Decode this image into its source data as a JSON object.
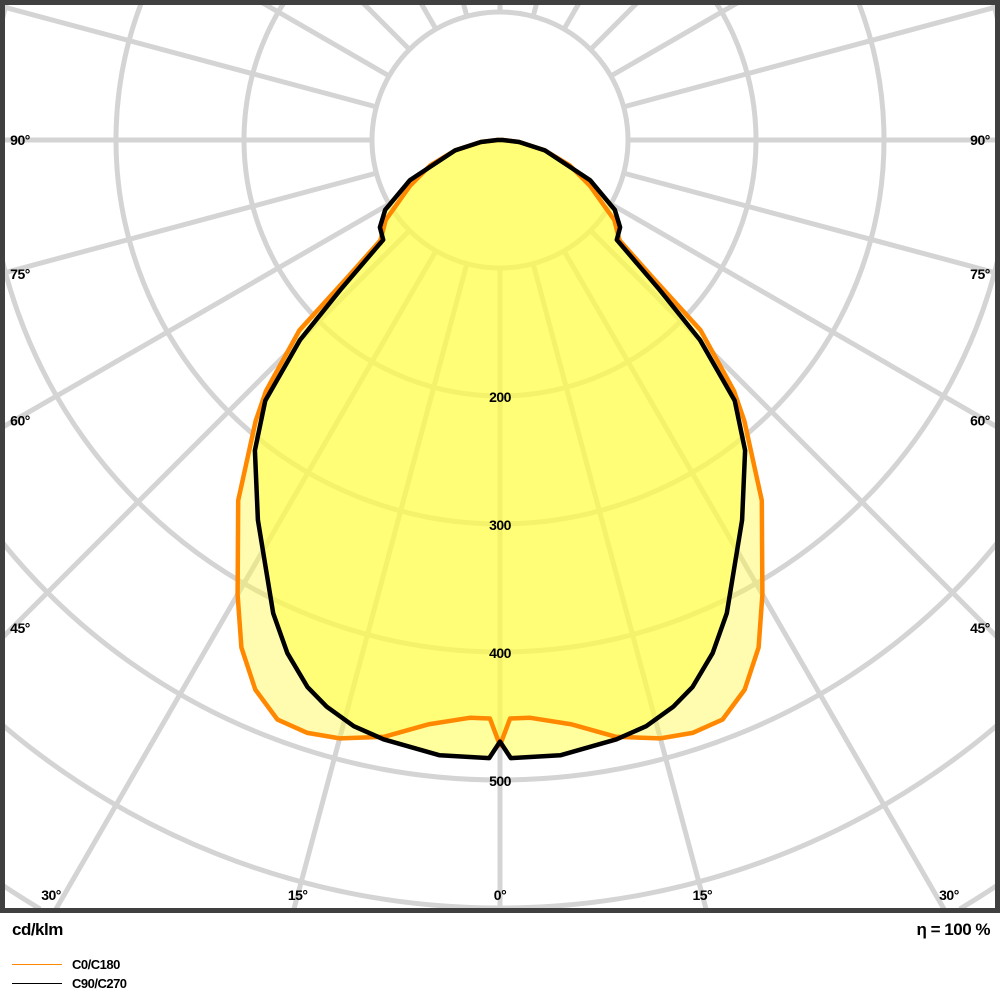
{
  "chart_data": {
    "type": "polar",
    "unit_label": "cd/klm",
    "efficiency_label": "η = 100 %",
    "radial_ticks": [
      100,
      200,
      300,
      400,
      500,
      600,
      700
    ],
    "radial_tick_labels": [
      "200",
      "300",
      "400",
      "500"
    ],
    "radial_tick_label_values": [
      200,
      300,
      400,
      500
    ],
    "angle_step_deg": 15,
    "angle_labels_bottom": [
      "30°",
      "15°",
      "0°",
      "15°",
      "30°"
    ],
    "angle_labels_bottom_values": [
      -30,
      -15,
      0,
      15,
      30
    ],
    "angle_labels_side": [
      "90°",
      "75°",
      "60°",
      "45°"
    ],
    "angle_labels_side_values": [
      90,
      75,
      60,
      45
    ],
    "grid": true,
    "legend_placement": "bottom-left",
    "series": [
      {
        "name": "C0/C180",
        "color": "#ff8800",
        "gamma": [
          0,
          1,
          3,
          7,
          11,
          15,
          18,
          21,
          24,
          27,
          30,
          36,
          41,
          43,
          46.5,
          48,
          50,
          55,
          63,
          70,
          77,
          84,
          90
        ],
        "values": [
          473,
          452,
          452,
          460,
          475,
          484,
          487,
          485,
          470,
          445,
          410,
          348,
          291,
          268,
          216,
          160,
          122,
          109,
          79,
          58,
          36,
          15,
          2
        ]
      },
      {
        "name": "C90/C270",
        "color": "#000000",
        "gamma": [
          0,
          1,
          5.6,
          11,
          14,
          17,
          19.4,
          22.5,
          25.6,
          32.5,
          38.3,
          42,
          45,
          46.8,
          49.5,
          54,
          58.7,
          66,
          77,
          84,
          90
        ],
        "values": [
          470,
          483,
          483,
          477,
          472,
          463,
          453,
          434,
          410,
          352,
          309,
          274,
          221,
          171,
          120,
          116,
          105,
          77,
          36,
          15,
          2
        ]
      }
    ]
  }
}
